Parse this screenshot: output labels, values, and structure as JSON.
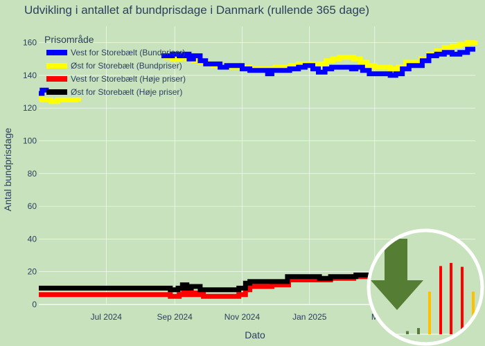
{
  "chart_data": {
    "type": "line",
    "title": "Udvikling i antallet af bundprisdage i Danmark (rullende 365 dage)",
    "xlabel": "Dato",
    "ylabel": "Antal bundprisdage",
    "ylim": [
      0,
      170
    ],
    "xlim": [
      "2024-05-01",
      "2025-05-31"
    ],
    "yticks": [
      0,
      20,
      40,
      60,
      80,
      100,
      120,
      140,
      160
    ],
    "xticks": [
      {
        "date": "2024-07-01",
        "label": "Jul 2024"
      },
      {
        "date": "2024-09-01",
        "label": "Sep 2024"
      },
      {
        "date": "2024-11-01",
        "label": "Nov 2024"
      },
      {
        "date": "2025-01-01",
        "label": "Jan 2025"
      },
      {
        "date": "2025-03-01",
        "label": "M"
      }
    ],
    "grid": true,
    "legend": {
      "title": "Prisområde",
      "position": "top-left"
    },
    "series": [
      {
        "name": "Vest for Storebælt (Bundpriser)",
        "color": "#0000ff",
        "points": [
          [
            "2024-05-01",
            129
          ],
          [
            "2024-05-04",
            131
          ],
          [
            "2024-05-10",
            131
          ],
          [
            "2024-08-20",
            152
          ],
          [
            "2024-08-30",
            153
          ],
          [
            "2024-09-05",
            152
          ],
          [
            "2024-09-10",
            153
          ],
          [
            "2024-09-14",
            150
          ],
          [
            "2024-09-18",
            152
          ],
          [
            "2024-09-24",
            149
          ],
          [
            "2024-09-29",
            147
          ],
          [
            "2024-10-06",
            147
          ],
          [
            "2024-10-12",
            145
          ],
          [
            "2024-10-18",
            146
          ],
          [
            "2024-10-26",
            146
          ],
          [
            "2024-11-01",
            144
          ],
          [
            "2024-11-08",
            143
          ],
          [
            "2024-11-14",
            143
          ],
          [
            "2024-11-20",
            143
          ],
          [
            "2024-11-24",
            141
          ],
          [
            "2024-11-28",
            143
          ],
          [
            "2024-12-08",
            143
          ],
          [
            "2024-12-14",
            144
          ],
          [
            "2024-12-22",
            145
          ],
          [
            "2024-12-28",
            146
          ],
          [
            "2025-01-04",
            144
          ],
          [
            "2025-01-09",
            142
          ],
          [
            "2025-01-15",
            144
          ],
          [
            "2025-01-21",
            145
          ],
          [
            "2025-01-28",
            145
          ],
          [
            "2025-02-04",
            145
          ],
          [
            "2025-02-08",
            144
          ],
          [
            "2025-02-12",
            145
          ],
          [
            "2025-02-18",
            143
          ],
          [
            "2025-02-24",
            141
          ],
          [
            "2025-03-04",
            141
          ],
          [
            "2025-03-09",
            141
          ],
          [
            "2025-03-15",
            140
          ],
          [
            "2025-03-20",
            141
          ],
          [
            "2025-03-26",
            144
          ],
          [
            "2025-04-01",
            146
          ],
          [
            "2025-04-07",
            146
          ],
          [
            "2025-04-13",
            149
          ],
          [
            "2025-04-19",
            152
          ],
          [
            "2025-04-26",
            153
          ],
          [
            "2025-05-03",
            154
          ],
          [
            "2025-05-10",
            153
          ],
          [
            "2025-05-17",
            154
          ],
          [
            "2025-05-24",
            156
          ],
          [
            "2025-05-31",
            156
          ]
        ]
      },
      {
        "name": "Øst for Storebælt (Bundpriser)",
        "color": "#ffff00",
        "points": [
          [
            "2024-05-01",
            126
          ],
          [
            "2024-05-04",
            125
          ],
          [
            "2024-05-08",
            125
          ],
          [
            "2024-05-12",
            124
          ],
          [
            "2024-05-18",
            125
          ],
          [
            "2024-05-25",
            125
          ],
          [
            "2024-06-01",
            125
          ],
          [
            "2024-06-06",
            124
          ],
          [
            "2024-08-22",
            151
          ],
          [
            "2024-08-30",
            150
          ],
          [
            "2024-09-06",
            151
          ],
          [
            "2024-09-12",
            150
          ],
          [
            "2024-09-18",
            149
          ],
          [
            "2024-09-24",
            148
          ],
          [
            "2024-09-30",
            147
          ],
          [
            "2024-10-06",
            146
          ],
          [
            "2024-10-12",
            145
          ],
          [
            "2024-10-18",
            145
          ],
          [
            "2024-10-26",
            145
          ],
          [
            "2024-11-01",
            145
          ],
          [
            "2024-11-08",
            144
          ],
          [
            "2024-11-16",
            144
          ],
          [
            "2024-11-24",
            144
          ],
          [
            "2024-12-01",
            145
          ],
          [
            "2024-12-08",
            145
          ],
          [
            "2024-12-15",
            146
          ],
          [
            "2024-12-22",
            147
          ],
          [
            "2024-12-29",
            147
          ],
          [
            "2025-01-05",
            146
          ],
          [
            "2025-01-10",
            147
          ],
          [
            "2025-01-16",
            149
          ],
          [
            "2025-01-22",
            150
          ],
          [
            "2025-01-28",
            151
          ],
          [
            "2025-02-04",
            151
          ],
          [
            "2025-02-10",
            150
          ],
          [
            "2025-02-16",
            148
          ],
          [
            "2025-02-22",
            146
          ],
          [
            "2025-03-01",
            145
          ],
          [
            "2025-03-08",
            145
          ],
          [
            "2025-03-15",
            144
          ],
          [
            "2025-03-22",
            145
          ],
          [
            "2025-03-29",
            148
          ],
          [
            "2025-04-05",
            148
          ],
          [
            "2025-04-12",
            150
          ],
          [
            "2025-04-19",
            153
          ],
          [
            "2025-04-26",
            155
          ],
          [
            "2025-05-03",
            157
          ],
          [
            "2025-05-10",
            158
          ],
          [
            "2025-05-17",
            159
          ],
          [
            "2025-05-24",
            160
          ],
          [
            "2025-05-31",
            161
          ]
        ]
      },
      {
        "name": "Vest for Storebælt (Høje priser)",
        "color": "#ff0000",
        "points": [
          [
            "2024-05-01",
            6
          ],
          [
            "2024-05-20",
            6
          ],
          [
            "2024-06-15",
            6
          ],
          [
            "2024-07-10",
            6
          ],
          [
            "2024-08-05",
            6
          ],
          [
            "2024-08-25",
            6
          ],
          [
            "2024-08-28",
            5
          ],
          [
            "2024-09-02",
            5
          ],
          [
            "2024-09-05",
            6
          ],
          [
            "2024-09-09",
            8
          ],
          [
            "2024-09-13",
            6
          ],
          [
            "2024-09-17",
            7
          ],
          [
            "2024-09-21",
            6
          ],
          [
            "2024-09-24",
            7
          ],
          [
            "2024-09-27",
            5
          ],
          [
            "2024-10-10",
            5
          ],
          [
            "2024-10-25",
            5
          ],
          [
            "2024-10-29",
            6
          ],
          [
            "2024-11-04",
            9
          ],
          [
            "2024-11-08",
            11
          ],
          [
            "2024-11-24",
            11
          ],
          [
            "2024-11-28",
            12
          ],
          [
            "2024-12-08",
            12
          ],
          [
            "2024-12-13",
            15
          ],
          [
            "2024-12-25",
            15
          ],
          [
            "2025-01-10",
            15
          ],
          [
            "2025-01-20",
            16
          ],
          [
            "2025-02-10",
            17
          ],
          [
            "2025-03-01",
            17
          ]
        ]
      },
      {
        "name": "Øst for Storebælt (Høje priser)",
        "color": "#000000",
        "points": [
          [
            "2024-05-01",
            10
          ],
          [
            "2024-05-20",
            10
          ],
          [
            "2024-06-15",
            10
          ],
          [
            "2024-07-10",
            10
          ],
          [
            "2024-08-05",
            10
          ],
          [
            "2024-08-25",
            10
          ],
          [
            "2024-08-28",
            9
          ],
          [
            "2024-09-01",
            9
          ],
          [
            "2024-09-04",
            10
          ],
          [
            "2024-09-08",
            12
          ],
          [
            "2024-09-12",
            10
          ],
          [
            "2024-09-16",
            11
          ],
          [
            "2024-09-21",
            11
          ],
          [
            "2024-09-24",
            9
          ],
          [
            "2024-09-27",
            9
          ],
          [
            "2024-10-10",
            9
          ],
          [
            "2024-10-25",
            9
          ],
          [
            "2024-10-29",
            10
          ],
          [
            "2024-11-04",
            13
          ],
          [
            "2024-11-08",
            14
          ],
          [
            "2024-11-24",
            14
          ],
          [
            "2024-11-28",
            14
          ],
          [
            "2024-12-06",
            14
          ],
          [
            "2024-12-12",
            17
          ],
          [
            "2024-12-25",
            17
          ],
          [
            "2025-01-10",
            16
          ],
          [
            "2025-01-20",
            17
          ],
          [
            "2025-02-05",
            17
          ],
          [
            "2025-02-12",
            18
          ],
          [
            "2025-03-01",
            18
          ]
        ]
      }
    ],
    "logo": {
      "arrow_color": "#567d34",
      "bar_colors": [
        "#567d34",
        "#ffc000",
        "#ff0000"
      ],
      "bar_levels": [
        0.04,
        0.08,
        0.55,
        0.88,
        0.92,
        0.87,
        0.55
      ]
    }
  }
}
